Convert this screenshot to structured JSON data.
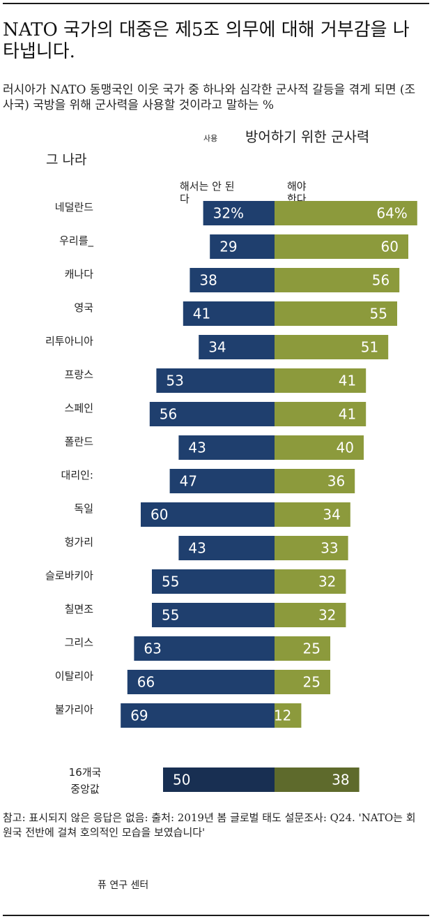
{
  "title": "NATO 국가의 대중은 제5조 의무에 대해 거부감을 나타냅니다.",
  "subtitle": "러시아가 NATO 동맹국인 이웃 국가 중 하나와 심각한 군사적 갈등을 겪게 되면 (조사국) 국방을 위해 군사력을 사용할 것이라고 말하는 %",
  "header_small": "사용",
  "header_large": "방어하기 위한 군사력",
  "header_country": "그 나라",
  "legend_should_not": "해서는 안 된다",
  "legend_should": "해야 한다",
  "note": "참고: 표시되지 않은 응답은 없음: 출처: 2019년 봄 글로벌 태도 설문조사: Q24. 'NATO는 회원국 전반에 걸쳐 호의적인 모습을 보였습니다'",
  "source": "퓨 연구 센터",
  "colors": {
    "should_not": "#1f3f6e",
    "should": "#8c9a3c",
    "median_should_not": "#182f52",
    "median_should": "#5e6a2c"
  },
  "chart_data": {
    "type": "bar",
    "orientation": "horizontal-diverging",
    "categories": [
      "네덜란드",
      "우리를_",
      "캐나다",
      "영국",
      "리투아니아",
      "프랑스",
      "스페인",
      "폴란드",
      "대리인:",
      "독일",
      "헝가리",
      "슬로바키아",
      "칠면조",
      "그리스",
      "이탈리아",
      "불가리아"
    ],
    "series": [
      {
        "name": "해서는 안 된다",
        "values": [
          32,
          29,
          38,
          41,
          34,
          53,
          56,
          43,
          47,
          60,
          43,
          55,
          55,
          63,
          66,
          69
        ],
        "labels": [
          "32%",
          "29",
          "38",
          "41",
          "34",
          "53",
          "56",
          "43",
          "47",
          "60",
          "43",
          "55",
          "55",
          "63",
          "66",
          "69"
        ]
      },
      {
        "name": "해야 한다",
        "values": [
          64,
          60,
          56,
          55,
          51,
          41,
          41,
          40,
          36,
          34,
          33,
          32,
          32,
          25,
          25,
          12
        ],
        "labels": [
          "64%",
          "60",
          "56",
          "55",
          "51",
          "41",
          "41",
          "40",
          "36",
          "34",
          "33",
          "32",
          "32",
          "25",
          "25",
          "12"
        ]
      }
    ],
    "median": {
      "label": "16개국 중앙값",
      "label_lines": [
        "16개국",
        "중앙값"
      ],
      "values": [
        50,
        38
      ],
      "labels": [
        "50",
        "38"
      ]
    }
  }
}
